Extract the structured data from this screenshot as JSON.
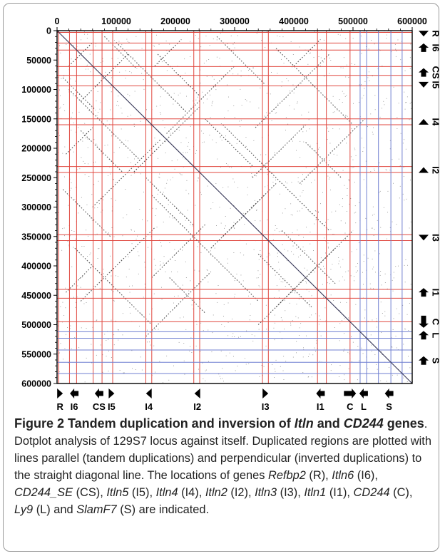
{
  "figure": {
    "caption_parts": [
      {
        "text": "Figure 2 Tandem duplication and inversion of ",
        "b": true,
        "i": false
      },
      {
        "text": "Itln",
        "b": true,
        "i": true
      },
      {
        "text": " and ",
        "b": true,
        "i": false
      },
      {
        "text": "CD244",
        "b": true,
        "i": true
      },
      {
        "text": " genes",
        "b": true,
        "i": false
      },
      {
        "text": ". Dotplot analysis of 129S7 locus against itself. Duplicated regions are plotted with lines parallel (tandem duplications) and perpendicular (inverted duplications) to the straight diagonal line. The locations of genes ",
        "b": false,
        "i": false
      },
      {
        "text": "Refbp2",
        "b": false,
        "i": true
      },
      {
        "text": " (R), ",
        "b": false,
        "i": false
      },
      {
        "text": "Itln6",
        "b": false,
        "i": true
      },
      {
        "text": " (I6), ",
        "b": false,
        "i": false
      },
      {
        "text": "CD244_SE",
        "b": false,
        "i": true
      },
      {
        "text": " (CS), ",
        "b": false,
        "i": false
      },
      {
        "text": "Itln5",
        "b": false,
        "i": true
      },
      {
        "text": " (I5), ",
        "b": false,
        "i": false
      },
      {
        "text": "Itln4",
        "b": false,
        "i": true
      },
      {
        "text": " (I4), ",
        "b": false,
        "i": false
      },
      {
        "text": "Itln2",
        "b": false,
        "i": true
      },
      {
        "text": " (I2), ",
        "b": false,
        "i": false
      },
      {
        "text": "Itln3",
        "b": false,
        "i": true
      },
      {
        "text": " (I3), ",
        "b": false,
        "i": false
      },
      {
        "text": "Itln1",
        "b": false,
        "i": true
      },
      {
        "text": " (I1), ",
        "b": false,
        "i": false
      },
      {
        "text": "CD244",
        "b": false,
        "i": true
      },
      {
        "text": " (C), ",
        "b": false,
        "i": false
      },
      {
        "text": "Ly9",
        "b": false,
        "i": true
      },
      {
        "text": " (L) and ",
        "b": false,
        "i": false
      },
      {
        "text": "SlamF7",
        "b": false,
        "i": true
      },
      {
        "text": " (S) are indicated.",
        "b": false,
        "i": false
      }
    ]
  },
  "colors": {
    "gene_line_red": "#e0473f",
    "gene_line_blue": "#6f7fd0",
    "dot": "#333333",
    "diagonal": "#3a3a5a",
    "frame": "#000000",
    "panel_border": "#9a9a9a"
  },
  "chart_data": {
    "type": "scatter",
    "title": "",
    "xlabel": "",
    "ylabel": "",
    "xlim": [
      0,
      600000
    ],
    "ylim": [
      0,
      600000
    ],
    "y_inverted": true,
    "x_ticks": [
      0,
      100000,
      200000,
      300000,
      400000,
      500000,
      600000
    ],
    "y_ticks": [
      0,
      50000,
      100000,
      150000,
      200000,
      250000,
      300000,
      350000,
      400000,
      450000,
      500000,
      550000,
      600000
    ],
    "x_tick_labels": [
      "0",
      "100000",
      "200000",
      "300000",
      "400000",
      "500000",
      "600000"
    ],
    "y_tick_labels": [
      "0",
      "50000",
      "100000",
      "150000",
      "200000",
      "250000",
      "300000",
      "350000",
      "400000",
      "450000",
      "500000",
      "550000",
      "600000"
    ],
    "main_diagonal": [
      [
        0,
        0
      ],
      [
        600000,
        600000
      ]
    ],
    "gene_boundaries": {
      "red": [
        3000,
        21000,
        33000,
        61000,
        76000,
        94000,
        150000,
        160000,
        231000,
        241000,
        347000,
        357000,
        440000,
        455000,
        495000
      ],
      "blue": [
        512000,
        523000,
        543000,
        564000,
        583000
      ]
    },
    "genes": [
      {
        "label": "R",
        "position": 5000,
        "direction": "forward",
        "size": "small"
      },
      {
        "label": "I6",
        "position": 29000,
        "direction": "reverse",
        "size": "medium"
      },
      {
        "label": "CS",
        "position": 71000,
        "direction": "reverse",
        "size": "medium"
      },
      {
        "label": "I5",
        "position": 92000,
        "direction": "forward",
        "size": "small"
      },
      {
        "label": "I4",
        "position": 155000,
        "direction": "reverse",
        "size": "small"
      },
      {
        "label": "I2",
        "position": 237000,
        "direction": "reverse",
        "size": "small"
      },
      {
        "label": "I3",
        "position": 352000,
        "direction": "forward",
        "size": "small"
      },
      {
        "label": "I1",
        "position": 445000,
        "direction": "reverse",
        "size": "medium"
      },
      {
        "label": "C",
        "position": 495000,
        "direction": "forward",
        "size": "large"
      },
      {
        "label": "L",
        "position": 518000,
        "direction": "reverse",
        "size": "medium"
      },
      {
        "label": "S",
        "position": 561000,
        "direction": "reverse",
        "size": "medium"
      }
    ],
    "duplication_segments": [
      {
        "kind": "tandem",
        "x": [
          10000,
          65000
        ],
        "y": [
          80000,
          135000
        ]
      },
      {
        "kind": "tandem",
        "x": [
          80000,
          135000
        ],
        "y": [
          10000,
          65000
        ]
      },
      {
        "kind": "tandem",
        "x": [
          100000,
          220000
        ],
        "y": [
          20000,
          140000
        ]
      },
      {
        "kind": "tandem",
        "x": [
          20000,
          140000
        ],
        "y": [
          100000,
          220000
        ]
      },
      {
        "kind": "tandem",
        "x": [
          270000,
          350000
        ],
        "y": [
          10000,
          90000
        ]
      },
      {
        "kind": "tandem",
        "x": [
          10000,
          90000
        ],
        "y": [
          270000,
          350000
        ]
      },
      {
        "kind": "tandem",
        "x": [
          160000,
          340000
        ],
        "y": [
          280000,
          460000
        ]
      },
      {
        "kind": "tandem",
        "x": [
          280000,
          460000
        ],
        "y": [
          160000,
          340000
        ]
      },
      {
        "kind": "tandem",
        "x": [
          30000,
          160000
        ],
        "y": [
          370000,
          500000
        ]
      },
      {
        "kind": "tandem",
        "x": [
          370000,
          500000
        ],
        "y": [
          30000,
          160000
        ]
      },
      {
        "kind": "tandem",
        "x": [
          40000,
          110000
        ],
        "y": [
          170000,
          240000
        ]
      },
      {
        "kind": "tandem",
        "x": [
          170000,
          240000
        ],
        "y": [
          40000,
          110000
        ]
      },
      {
        "kind": "tandem",
        "x": [
          250000,
          330000
        ],
        "y": [
          150000,
          230000
        ]
      },
      {
        "kind": "tandem",
        "x": [
          150000,
          230000
        ],
        "y": [
          250000,
          330000
        ]
      },
      {
        "kind": "tandem",
        "x": [
          340000,
          430000
        ],
        "y": [
          380000,
          470000
        ]
      },
      {
        "kind": "tandem",
        "x": [
          380000,
          470000
        ],
        "y": [
          340000,
          430000
        ]
      },
      {
        "kind": "tandem",
        "x": [
          190000,
          250000
        ],
        "y": [
          420000,
          480000
        ]
      },
      {
        "kind": "tandem",
        "x": [
          420000,
          480000
        ],
        "y": [
          190000,
          250000
        ]
      },
      {
        "kind": "inverted",
        "x": [
          40000,
          120000
        ],
        "y": [
          120000,
          40000
        ]
      },
      {
        "kind": "inverted",
        "x": [
          20000,
          60000
        ],
        "y": [
          60000,
          20000
        ]
      },
      {
        "kind": "inverted",
        "x": [
          130000,
          240000
        ],
        "y": [
          240000,
          130000
        ]
      },
      {
        "kind": "inverted",
        "x": [
          40000,
          165000
        ],
        "y": [
          460000,
          335000
        ]
      },
      {
        "kind": "inverted",
        "x": [
          335000,
          460000
        ],
        "y": [
          165000,
          40000
        ]
      },
      {
        "kind": "inverted",
        "x": [
          150000,
          260000
        ],
        "y": [
          520000,
          410000
        ]
      },
      {
        "kind": "inverted",
        "x": [
          410000,
          520000
        ],
        "y": [
          260000,
          150000
        ]
      },
      {
        "kind": "inverted",
        "x": [
          60000,
          175000
        ],
        "y": [
          300000,
          185000
        ]
      },
      {
        "kind": "inverted",
        "x": [
          185000,
          300000
        ],
        "y": [
          175000,
          60000
        ]
      },
      {
        "kind": "inverted",
        "x": [
          160000,
          250000
        ],
        "y": [
          420000,
          330000
        ]
      },
      {
        "kind": "inverted",
        "x": [
          330000,
          420000
        ],
        "y": [
          250000,
          160000
        ]
      },
      {
        "kind": "inverted",
        "x": [
          260000,
          350000
        ],
        "y": [
          370000,
          280000
        ]
      },
      {
        "kind": "inverted",
        "x": [
          280000,
          370000
        ],
        "y": [
          350000,
          260000
        ]
      },
      {
        "kind": "inverted",
        "x": [
          340000,
          470000
        ],
        "y": [
          500000,
          370000
        ]
      },
      {
        "kind": "inverted",
        "x": [
          370000,
          500000
        ],
        "y": [
          470000,
          340000
        ]
      },
      {
        "kind": "inverted",
        "x": [
          15000,
          60000
        ],
        "y": [
          210000,
          165000
        ]
      },
      {
        "kind": "inverted",
        "x": [
          165000,
          210000
        ],
        "y": [
          60000,
          15000
        ]
      },
      {
        "kind": "inverted",
        "x": [
          400000,
          445000
        ],
        "y": [
          60000,
          15000
        ]
      },
      {
        "kind": "inverted",
        "x": [
          15000,
          60000
        ],
        "y": [
          445000,
          400000
        ]
      }
    ]
  }
}
